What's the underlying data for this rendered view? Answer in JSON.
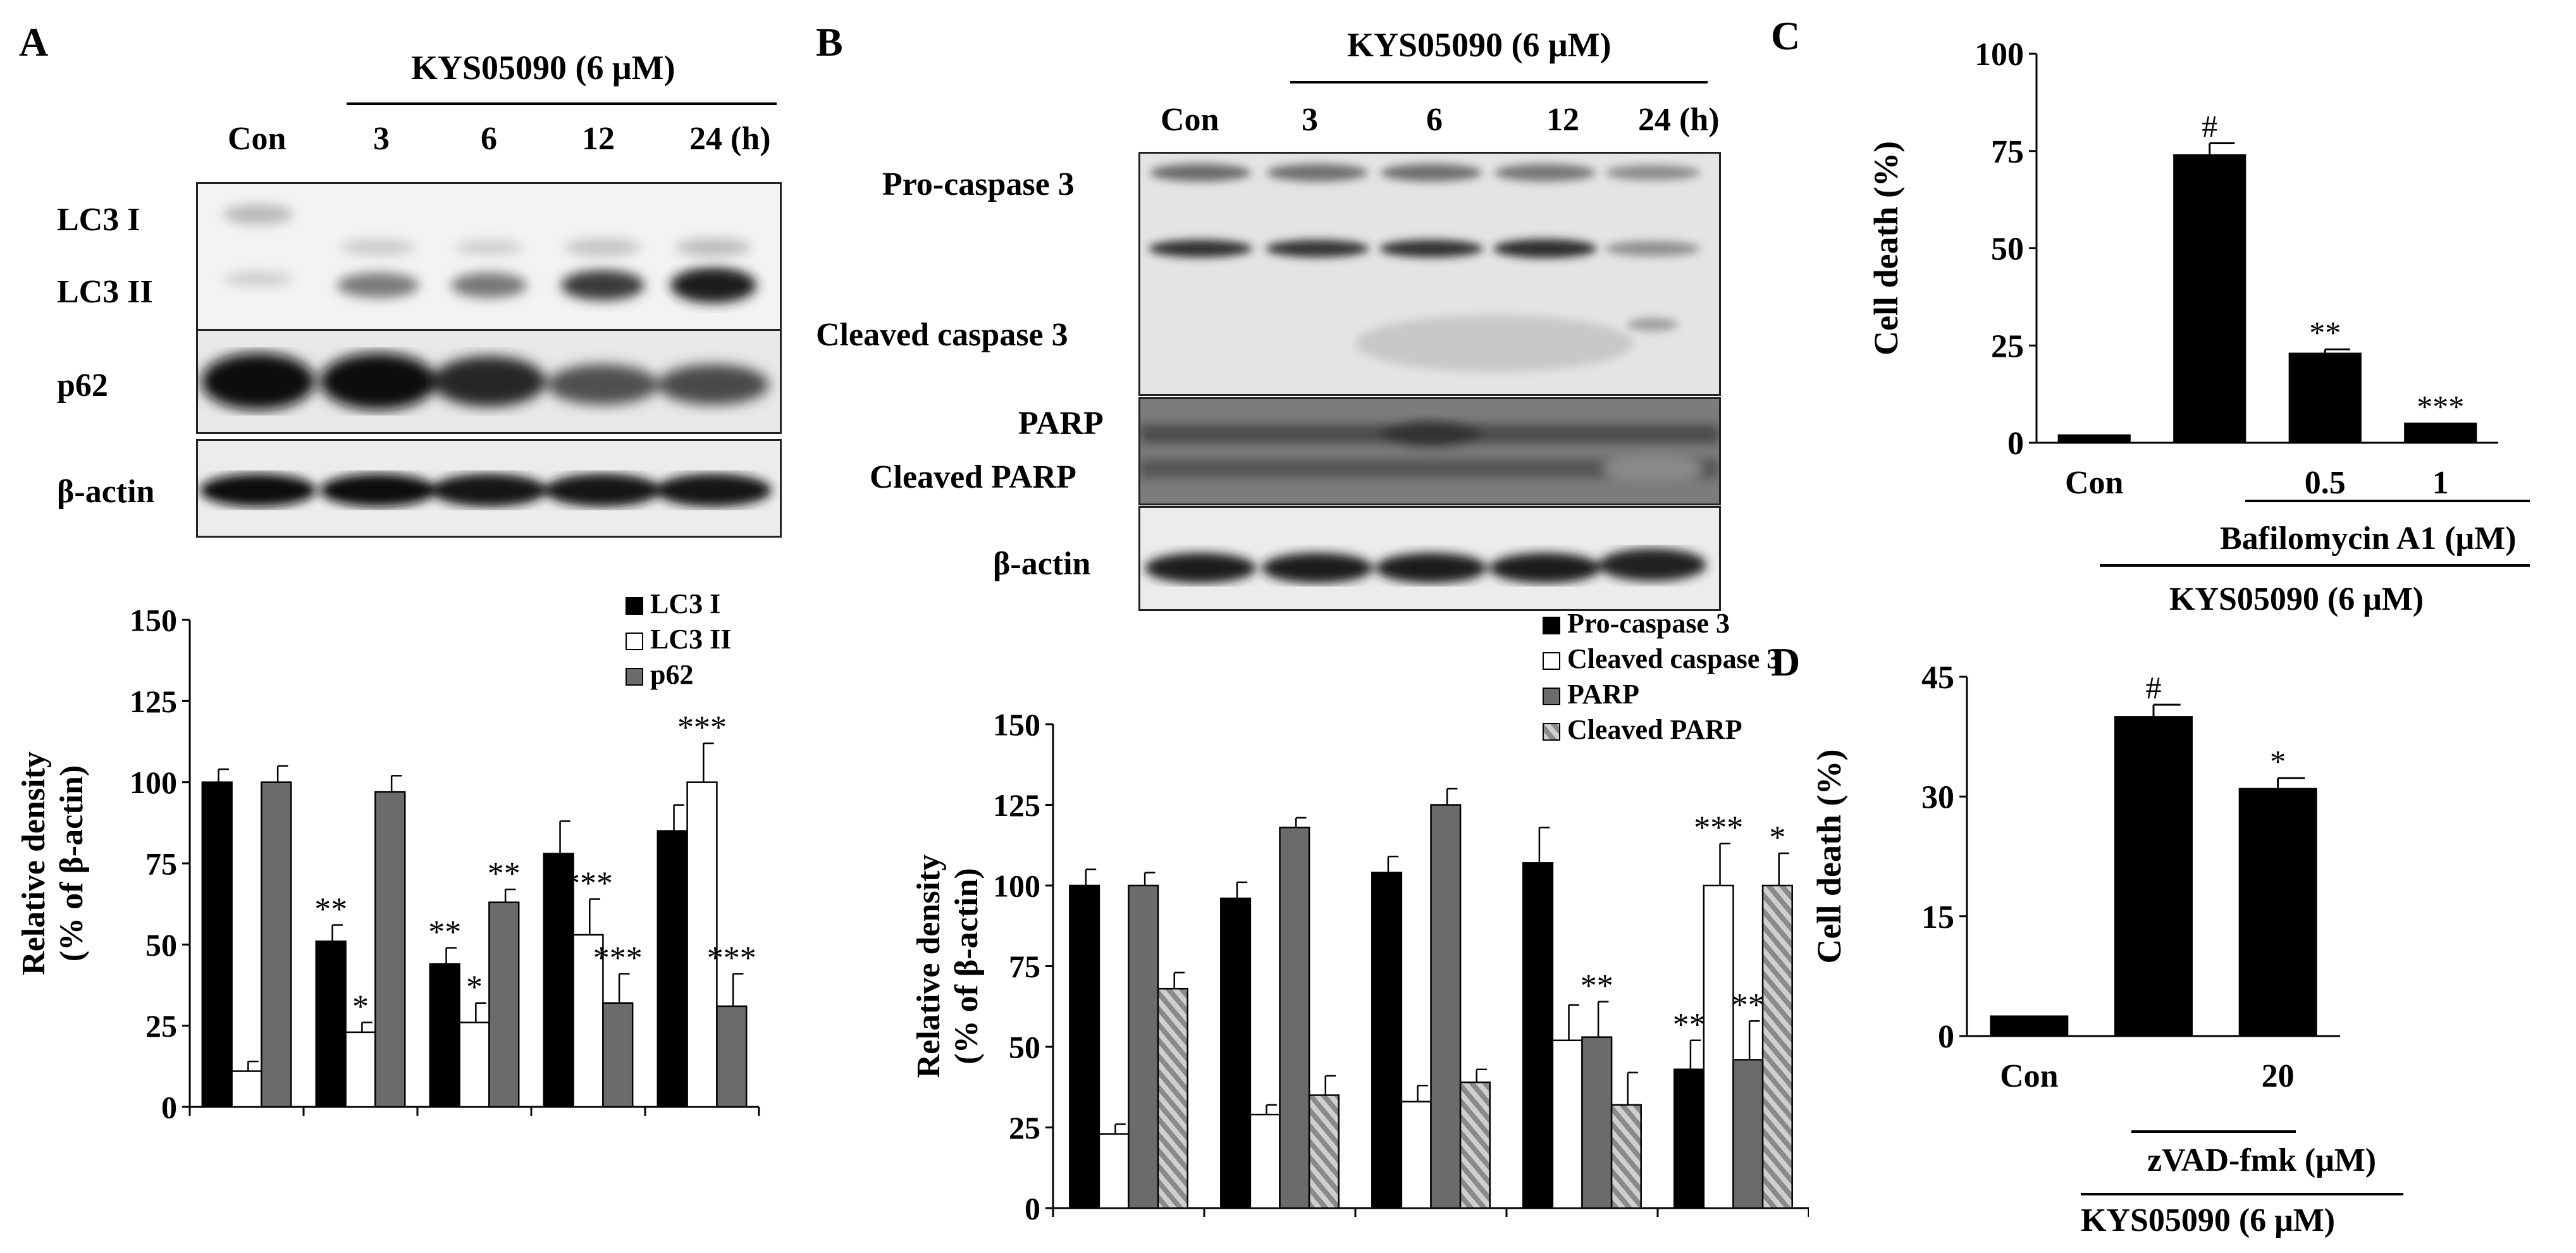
{
  "panels": {
    "A": {
      "letter": "A",
      "treatment": "KYS05090 (6 μM)",
      "lanes": [
        "Con",
        "3",
        "6",
        "12",
        "24 (h)"
      ],
      "blot_rows": [
        "LC3 I",
        "LC3 II",
        "p62",
        "β-actin"
      ]
    },
    "B": {
      "letter": "B",
      "treatment": "KYS05090 (6 μM)",
      "lanes": [
        "Con",
        "3",
        "6",
        "12",
        "24 (h)"
      ],
      "blot_rows": [
        "Pro-caspase 3",
        "Cleaved caspase 3",
        "PARP",
        "Cleaved PARP",
        "β-actin"
      ]
    },
    "C": {
      "letter": "C",
      "inhibitor_label": "Bafilomycin A1 (μM)",
      "treatment_label": "KYS05090 (6 μM)"
    },
    "D": {
      "letter": "D",
      "inhibitor_label": "zVAD-fmk (μM)",
      "treatment_label": "KYS05090 (6 μM)"
    }
  },
  "colors": {
    "black": "#000000",
    "white": "#ffffff",
    "gray": "#6b6b6b",
    "hatch": "#9a9a9a"
  },
  "chart_data": [
    {
      "id": "A-density",
      "type": "bar",
      "ylabel": "Relative density (% of β-actin)",
      "yticks": [
        0,
        25,
        50,
        75,
        100,
        125,
        150
      ],
      "ylim": [
        0,
        150
      ],
      "legend_position": "top-right",
      "groups": 5,
      "series": [
        {
          "name": "LC3 I",
          "fill": "black",
          "values": [
            100,
            51,
            44,
            78,
            85
          ],
          "errors": [
            4,
            5,
            5,
            10,
            8
          ],
          "marks": [
            "",
            "**",
            "**",
            "",
            ""
          ]
        },
        {
          "name": "LC3 II",
          "fill": "white",
          "values": [
            11,
            23,
            26,
            53,
            100
          ],
          "errors": [
            3,
            3,
            6,
            11,
            12
          ],
          "marks": [
            "",
            "*",
            "*",
            "***",
            "***"
          ]
        },
        {
          "name": "p62",
          "fill": "gray",
          "values": [
            100,
            97,
            63,
            32,
            31
          ],
          "errors": [
            5,
            5,
            4,
            9,
            10
          ],
          "marks": [
            "",
            "",
            "**",
            "***",
            "***"
          ]
        }
      ]
    },
    {
      "id": "B-density",
      "type": "bar",
      "ylabel": "Relative density (% of β-actin)",
      "yticks": [
        0,
        25,
        50,
        75,
        100,
        125,
        150
      ],
      "ylim": [
        0,
        150
      ],
      "legend_position": "top-right",
      "groups": 5,
      "series": [
        {
          "name": "Pro-caspase 3",
          "fill": "black",
          "values": [
            100,
            96,
            104,
            107,
            43
          ],
          "errors": [
            5,
            5,
            5,
            11,
            9
          ],
          "marks": [
            "",
            "",
            "",
            "",
            "**"
          ]
        },
        {
          "name": "Cleaved caspase 3",
          "fill": "white",
          "values": [
            23,
            29,
            33,
            52,
            100
          ],
          "errors": [
            3,
            3,
            5,
            11,
            13
          ],
          "marks": [
            "",
            "",
            "",
            "",
            "***"
          ]
        },
        {
          "name": "PARP",
          "fill": "gray",
          "values": [
            100,
            118,
            125,
            53,
            46
          ],
          "errors": [
            4,
            3,
            5,
            11,
            12
          ],
          "marks": [
            "",
            "",
            "",
            "**",
            "**"
          ]
        },
        {
          "name": "Cleaved PARP",
          "fill": "hatch",
          "values": [
            68,
            35,
            39,
            32,
            100
          ],
          "errors": [
            5,
            6,
            4,
            10,
            10
          ],
          "marks": [
            "",
            "",
            "",
            "",
            "*"
          ]
        }
      ]
    },
    {
      "id": "C-celldeath",
      "type": "bar",
      "ylabel": "Cell death (%)",
      "yticks": [
        0,
        25,
        50,
        75,
        100
      ],
      "ylim": [
        0,
        100
      ],
      "categories": [
        "Con",
        "",
        "0.5",
        "1"
      ],
      "values": [
        2,
        74,
        23,
        5
      ],
      "errors": [
        0,
        3,
        1,
        0
      ],
      "marks": [
        "",
        "#",
        "**",
        "***"
      ]
    },
    {
      "id": "D-celldeath",
      "type": "bar",
      "ylabel": "Cell death (%)",
      "yticks": [
        0,
        15,
        30,
        45
      ],
      "ylim": [
        0,
        45
      ],
      "categories": [
        "Con",
        "",
        "20"
      ],
      "values": [
        2.5,
        40,
        31
      ],
      "errors": [
        0,
        1.5,
        1.3
      ],
      "marks": [
        "",
        "#",
        "*"
      ]
    }
  ]
}
